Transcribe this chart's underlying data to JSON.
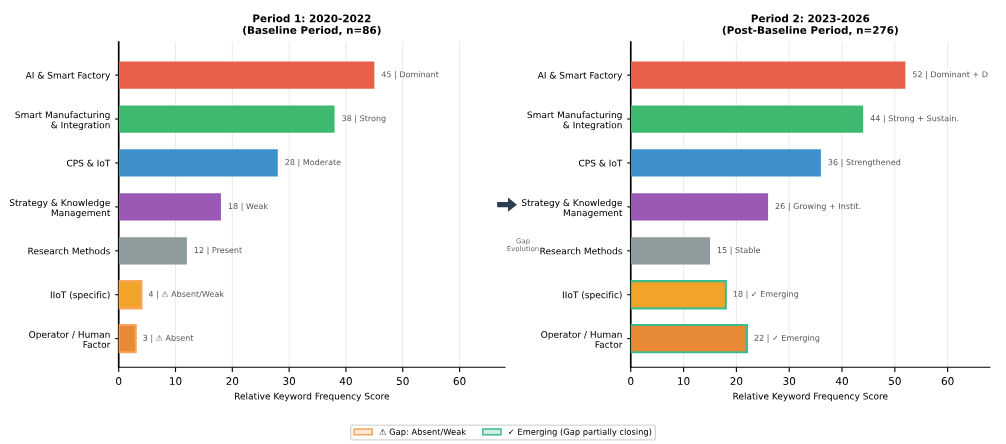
{
  "chart_data": [
    {
      "type": "bar",
      "orientation": "horizontal",
      "title": "Period 1: 2020-2022\n(Baseline Period, n=86)",
      "xlabel": "Relative Keyword Frequency Score",
      "categories": [
        "AI & Smart Factory",
        "Smart Manufacturing\n& Integration",
        "CPS & IoT",
        "Strategy & Knowledge\nManagement",
        "Research Methods",
        "IIoT (specific)",
        "Operator / Human\nFactor"
      ],
      "series": [
        {
          "colors": [
            "#e8604c",
            "#3dba6f",
            "#3f8fc8",
            "#9b59b6",
            "#8e9a9b",
            null,
            null
          ],
          "values": [
            45,
            38,
            28,
            18,
            12,
            null,
            null
          ],
          "value_labels": [
            "45 | Dominant",
            "38 | Strong",
            "28 | Moderate",
            "18 | Weak",
            "12 | Present",
            null,
            null
          ]
        },
        {
          "name": "⚠ Gap: Absent/Weak",
          "color": "#f5a55a",
          "colors": [
            null,
            null,
            null,
            null,
            null,
            "#f2a42a",
            "#e88a35"
          ],
          "values": [
            null,
            null,
            null,
            null,
            null,
            4,
            3
          ],
          "value_labels": [
            null,
            null,
            null,
            null,
            null,
            "4 | ⚠ Absent/Weak",
            "3 | ⚠ Absent"
          ]
        }
      ],
      "xlim": [
        0,
        68
      ],
      "xticks": [
        0,
        10,
        20,
        30,
        40,
        50,
        60
      ],
      "grid": "x",
      "legend": "bottom"
    },
    {
      "type": "bar",
      "orientation": "horizontal",
      "title": "Period 2: 2023-2026\n(Post-Baseline Period, n=276)",
      "xlabel": "Relative Keyword Frequency Score",
      "categories": [
        "AI & Smart Factory",
        "Smart Manufacturing\n& Integration",
        "CPS & IoT",
        "Strategy & Knowledge\nManagement",
        "Research Methods",
        "IIoT (specific)",
        "Operator / Human\nFactor"
      ],
      "series": [
        {
          "colors": [
            "#e8604c",
            "#3dba6f",
            "#3f8fc8",
            "#9b59b6",
            "#8e9a9b",
            null,
            null
          ],
          "values": [
            52,
            44,
            36,
            26,
            15,
            null,
            null
          ],
          "value_labels": [
            "52 | Dominant + D",
            "44 | Strong + Sustain.",
            "36 | Strengthened",
            "26 | Growing + Instit.",
            "15 | Stable",
            null,
            null
          ]
        },
        {
          "name": "✓ Emerging (Gap partially closing)",
          "color": "#3dbb8a",
          "colors": [
            null,
            null,
            null,
            null,
            null,
            "#f2a42a",
            "#e88a35"
          ],
          "values": [
            null,
            null,
            null,
            null,
            null,
            18,
            22
          ],
          "value_labels": [
            null,
            null,
            null,
            null,
            null,
            "18 | ✓ Emerging",
            "22 | ✓ Emerging"
          ]
        }
      ],
      "xlim": [
        0,
        68
      ],
      "xticks": [
        0,
        10,
        20,
        30,
        40,
        50,
        60
      ],
      "grid": "x",
      "legend": "bottom",
      "annotations": [
        "Gap\nEvolution"
      ]
    }
  ]
}
